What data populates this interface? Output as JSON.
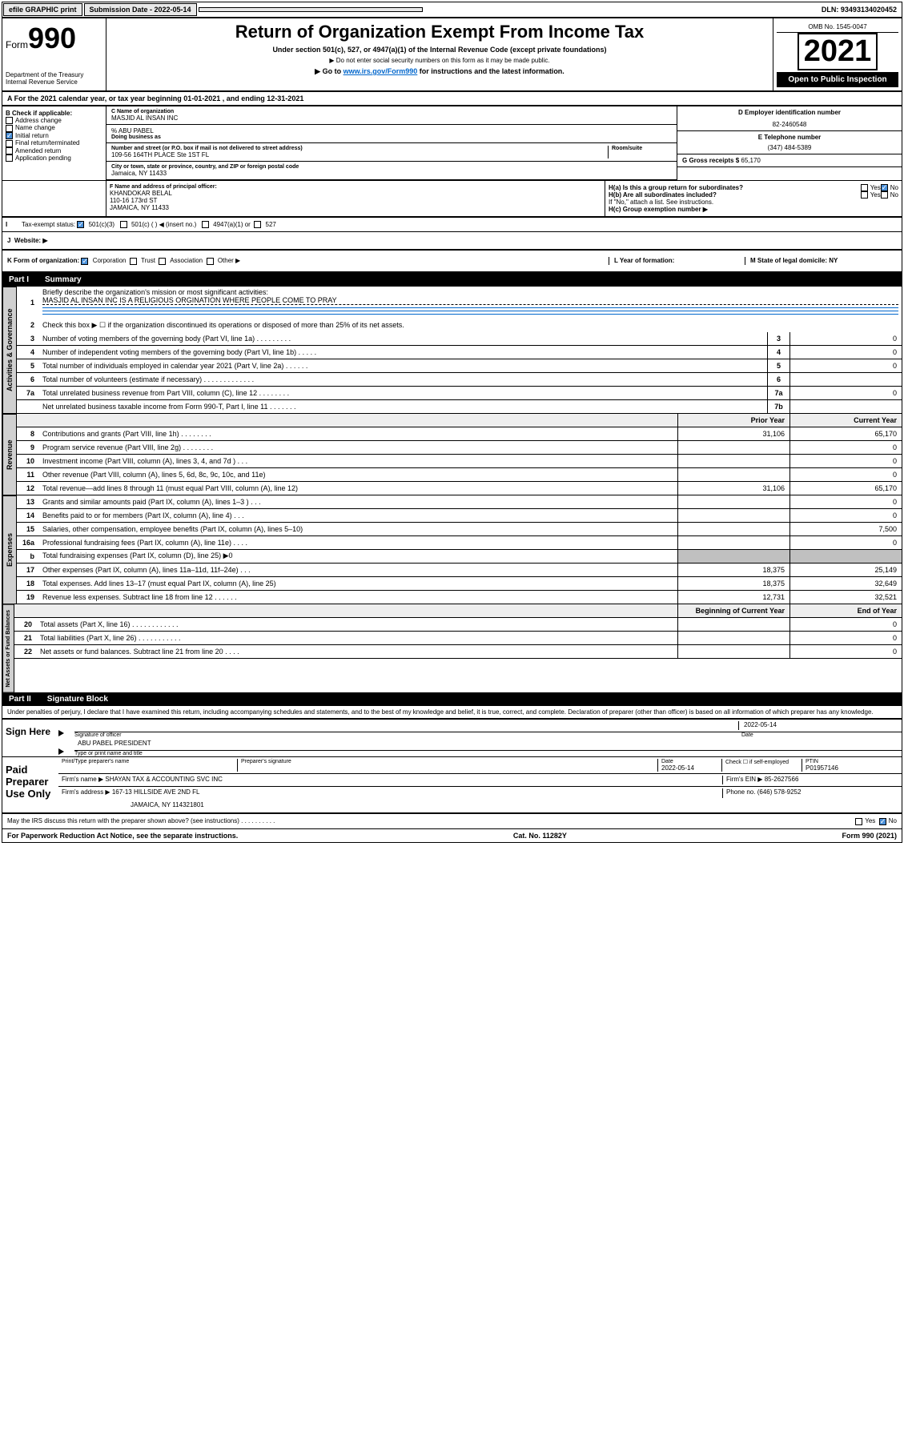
{
  "topbar": {
    "efile": "efile GRAPHIC print",
    "submission": "Submission Date - 2022-05-14",
    "dln": "DLN: 93493134020452"
  },
  "header": {
    "form_prefix": "Form",
    "form_number": "990",
    "dept": "Department of the Treasury",
    "irs": "Internal Revenue Service",
    "title": "Return of Organization Exempt From Income Tax",
    "subtitle": "Under section 501(c), 527, or 4947(a)(1) of the Internal Revenue Code (except private foundations)",
    "note1": "▶ Do not enter social security numbers on this form as it may be made public.",
    "note2_prefix": "▶ Go to ",
    "note2_link": "www.irs.gov/Form990",
    "note2_suffix": " for instructions and the latest information.",
    "omb": "OMB No. 1545-0047",
    "year": "2021",
    "open_public": "Open to Public Inspection"
  },
  "section_a": "For the 2021 calendar year, or tax year beginning 01-01-2021   , and ending 12-31-2021",
  "block_b": {
    "header": "B Check if applicable:",
    "items": [
      "Address change",
      "Name change",
      "Initial return",
      "Final return/terminated",
      "Amended return",
      "Application pending"
    ],
    "checked_idx": 2
  },
  "block_c": {
    "name_label": "C Name of organization",
    "name": "MASJID AL INSAN INC",
    "pct_label": "% ABU PABEL",
    "dba_label": "Doing business as",
    "addr_label": "Number and street (or P.O. box if mail is not delivered to street address)",
    "room_label": "Room/suite",
    "addr": "109-56 164TH PLACE Ste 1ST FL",
    "city_label": "City or town, state or province, country, and ZIP or foreign postal code",
    "city": "Jamaica, NY  11433"
  },
  "block_d": {
    "label": "D Employer identification number",
    "value": "82-2460548"
  },
  "block_e": {
    "label": "E Telephone number",
    "value": "(347) 484-5389"
  },
  "block_g": {
    "label": "G Gross receipts $",
    "value": "65,170"
  },
  "block_f": {
    "label": "F  Name and address of principal officer:",
    "name": "KHANDOKAR BELAL",
    "addr1": "110-16 173rd ST",
    "addr2": "JAMAICA, NY  11433"
  },
  "block_h": {
    "ha": "H(a)  Is this a group return for subordinates?",
    "hb": "H(b)  Are all subordinates included?",
    "hb_note": "If \"No,\" attach a list. See instructions.",
    "hc": "H(c)  Group exemption number ▶",
    "yes": "Yes",
    "no": "No"
  },
  "block_i": {
    "label": "Tax-exempt status:",
    "opts": [
      "501(c)(3)",
      "501(c) (  ) ◀ (insert no.)",
      "4947(a)(1) or",
      "527"
    ]
  },
  "block_j": {
    "label": "Website: ▶"
  },
  "block_k": {
    "label": "K Form of organization:",
    "opts": [
      "Corporation",
      "Trust",
      "Association",
      "Other ▶"
    ]
  },
  "block_l": "L Year of formation:",
  "block_m": "M State of legal domicile: NY",
  "part1": {
    "header_num": "Part I",
    "header_title": "Summary",
    "q1": "Briefly describe the organization's mission or most significant activities:",
    "q1_ans": "MASJID AL INSAN INC IS A RELIGIOUS ORGINATION WHERE PEOPLE COME TO PRAY",
    "q2": "Check this box ▶ ☐  if the organization discontinued its operations or disposed of more than 25% of its net assets.",
    "rows_gov": [
      {
        "n": "3",
        "d": "Number of voting members of the governing body (Part VI, line 1a)   .    .    .    .    .    .    .    .    .",
        "b": "3",
        "v": "0"
      },
      {
        "n": "4",
        "d": "Number of independent voting members of the governing body (Part VI, line 1b)  .    .    .    .    .",
        "b": "4",
        "v": "0"
      },
      {
        "n": "5",
        "d": "Total number of individuals employed in calendar year 2021 (Part V, line 2a)  .    .    .    .    .    .",
        "b": "5",
        "v": "0"
      },
      {
        "n": "6",
        "d": "Total number of volunteers (estimate if necessary)  .    .    .    .    .    .    .    .    .    .    .    .    .",
        "b": "6",
        "v": ""
      },
      {
        "n": "7a",
        "d": "Total unrelated business revenue from Part VIII, column (C), line 12  .    .    .    .    .    .    .    .",
        "b": "7a",
        "v": "0"
      },
      {
        "n": "",
        "d": "Net unrelated business taxable income from Form 990-T, Part I, line 11  .    .    .    .    .    .    .",
        "b": "7b",
        "v": ""
      }
    ],
    "col_prior": "Prior Year",
    "col_current": "Current Year",
    "rows_rev": [
      {
        "n": "8",
        "d": "Contributions and grants (Part VIII, line 1h)   .    .    .    .    .    .    .    .",
        "p": "31,106",
        "c": "65,170"
      },
      {
        "n": "9",
        "d": "Program service revenue (Part VIII, line 2g)   .    .    .    .    .    .    .    .",
        "p": "",
        "c": "0"
      },
      {
        "n": "10",
        "d": "Investment income (Part VIII, column (A), lines 3, 4, and 7d )   .    .    .",
        "p": "",
        "c": "0"
      },
      {
        "n": "11",
        "d": "Other revenue (Part VIII, column (A), lines 5, 6d, 8c, 9c, 10c, and 11e)",
        "p": "",
        "c": "0"
      },
      {
        "n": "12",
        "d": "Total revenue—add lines 8 through 11 (must equal Part VIII, column (A), line 12)",
        "p": "31,106",
        "c": "65,170"
      }
    ],
    "rows_exp": [
      {
        "n": "13",
        "d": "Grants and similar amounts paid (Part IX, column (A), lines 1–3 )   .    .    .",
        "p": "",
        "c": "0"
      },
      {
        "n": "14",
        "d": "Benefits paid to or for members (Part IX, column (A), line 4)   .    .    .",
        "p": "",
        "c": "0"
      },
      {
        "n": "15",
        "d": "Salaries, other compensation, employee benefits (Part IX, column (A), lines 5–10)",
        "p": "",
        "c": "7,500"
      },
      {
        "n": "16a",
        "d": "Professional fundraising fees (Part IX, column (A), line 11e)   .    .    .    .",
        "p": "",
        "c": "0"
      },
      {
        "n": "b",
        "d": "Total fundraising expenses (Part IX, column (D), line 25) ▶0",
        "p": "grey",
        "c": "grey"
      },
      {
        "n": "17",
        "d": "Other expenses (Part IX, column (A), lines 11a–11d, 11f–24e)  .    .    .",
        "p": "18,375",
        "c": "25,149"
      },
      {
        "n": "18",
        "d": "Total expenses. Add lines 13–17 (must equal Part IX, column (A), line 25)",
        "p": "18,375",
        "c": "32,649"
      },
      {
        "n": "19",
        "d": "Revenue less expenses. Subtract line 18 from line 12  .    .    .    .    .    .",
        "p": "12,731",
        "c": "32,521"
      }
    ],
    "col_begin": "Beginning of Current Year",
    "col_end": "End of Year",
    "rows_net": [
      {
        "n": "20",
        "d": "Total assets (Part X, line 16)  .    .    .    .    .    .    .    .    .    .    .    .",
        "p": "",
        "c": "0"
      },
      {
        "n": "21",
        "d": "Total liabilities (Part X, line 26)  .    .    .    .    .    .    .    .    .    .    .",
        "p": "",
        "c": "0"
      },
      {
        "n": "22",
        "d": "Net assets or fund balances. Subtract line 21 from line 20   .    .    .    .",
        "p": "",
        "c": "0"
      }
    ],
    "vtab_gov": "Activities & Governance",
    "vtab_rev": "Revenue",
    "vtab_exp": "Expenses",
    "vtab_net": "Net Assets or Fund Balances"
  },
  "part2": {
    "header_num": "Part II",
    "header_title": "Signature Block",
    "perjury": "Under penalties of perjury, I declare that I have examined this return, including accompanying schedules and statements, and to the best of my knowledge and belief, it is true, correct, and complete. Declaration of preparer (other than officer) is based on all information of which preparer has any knowledge.",
    "sign_here": "Sign Here",
    "sig_officer": "Signature of officer",
    "sig_date_label": "Date",
    "sig_date": "2022-05-14",
    "sig_name": "ABU PABEL  PRESIDENT",
    "sig_name_label": "Type or print name and title",
    "paid_prep": "Paid Preparer Use Only",
    "prep_name_label": "Print/Type preparer's name",
    "prep_sig_label": "Preparer's signature",
    "prep_date_label": "Date",
    "prep_date": "2022-05-14",
    "prep_check": "Check ☐ if self-employed",
    "ptin_label": "PTIN",
    "ptin": "P01957146",
    "firm_name_label": "Firm's name     ▶",
    "firm_name": "SHAYAN TAX & ACCOUNTING SVC INC",
    "firm_ein_label": "Firm's EIN ▶",
    "firm_ein": "85-2627566",
    "firm_addr_label": "Firm's address ▶",
    "firm_addr1": "167-13 HILLSIDE AVE 2ND FL",
    "firm_addr2": "JAMAICA, NY  114321801",
    "phone_label": "Phone no.",
    "phone": "(646) 578-9252",
    "may_irs": "May the IRS discuss this return with the preparer shown above? (see instructions)    .    .    .    .    .    .    .    .    .    .",
    "yes": "Yes",
    "no": "No"
  },
  "footer": {
    "left": "For Paperwork Reduction Act Notice, see the separate instructions.",
    "center": "Cat. No. 11282Y",
    "right": "Form 990 (2021)"
  }
}
